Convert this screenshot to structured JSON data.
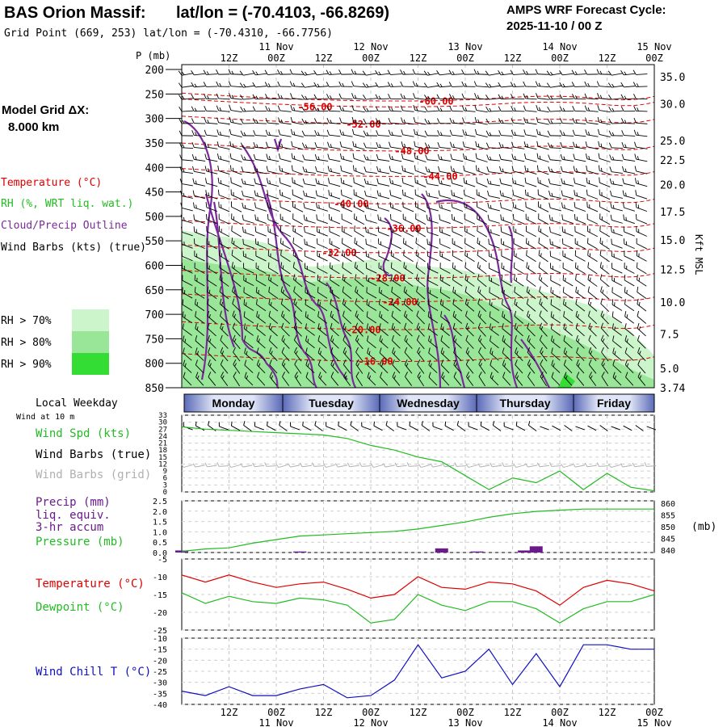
{
  "header": {
    "station_title": "BAS Orion Massif:",
    "latlon_title": "lat/lon = (-70.4103, -66.8269)",
    "grid_point": "Grid Point (669, 253) lat/lon = (-70.4310, -66.7756)",
    "cycle_label": "AMPS WRF Forecast Cycle:",
    "cycle_value": "2025-11-10 / 00  Z"
  },
  "left_panel": {
    "model_grid_label": "Model Grid ΔX:",
    "model_grid_value": "8.000 km",
    "legend": [
      {
        "text": "Temperature (°C)",
        "color": "#dd0000"
      },
      {
        "text": "RH (%, WRT liq. wat.)",
        "color": "#22bb22"
      },
      {
        "text": "Cloud/Precip Outline",
        "color": "#7a2a9a"
      },
      {
        "text": "Wind Barbs (kts) (true)",
        "color": "#000000"
      }
    ],
    "rh_scale": [
      {
        "text": "RH > 70%",
        "color": "#ccf5cc"
      },
      {
        "text": "RH > 80%",
        "color": "#99e699"
      },
      {
        "text": "RH > 90%",
        "color": "#33dd33"
      }
    ]
  },
  "time_axis": {
    "top_dates": [
      "11 Nov",
      "12 Nov",
      "13 Nov",
      "14 Nov",
      "15 Nov"
    ],
    "hour_labels": [
      "12Z",
      "00Z",
      "12Z",
      "00Z",
      "12Z",
      "00Z",
      "12Z",
      "00Z",
      "12Z",
      "00Z"
    ],
    "bottom_dates": [
      "11 Nov",
      "12 Nov",
      "13 Nov",
      "14 Nov",
      "15 Nov"
    ]
  },
  "weekday_bar": {
    "title": "Local Weekday",
    "days": [
      "Monday",
      "Tuesday",
      "Wednesday",
      "Thursday",
      "Friday"
    ]
  },
  "chart_data": [
    {
      "type": "area",
      "panel": "cross-section",
      "ylabel": "P (mb)",
      "pressure_ticks": [
        200,
        250,
        300,
        350,
        400,
        450,
        500,
        550,
        600,
        650,
        700,
        750,
        800,
        850
      ],
      "pressure_tick_labels": [
        "200",
        "250",
        "300",
        "350",
        "400",
        "450",
        "500",
        "550",
        "600",
        "650",
        "700",
        "750",
        "800",
        "850"
      ],
      "right_axis_label": "Kft MSL",
      "height_ticks_kft": [
        "35.0",
        "30.0",
        "25.0",
        "22.5",
        "20.0",
        "17.5",
        "15.0",
        "12.5",
        "10.0",
        "7.5",
        "5.0",
        "3.74"
      ],
      "height_tick_pressures": [
        215,
        270,
        345,
        385,
        435,
        490,
        548,
        608,
        675,
        740,
        810,
        850
      ],
      "temperature_contours": [
        {
          "label": "-60.00",
          "p": 268
        },
        {
          "label": "-56.00",
          "p": 280
        },
        {
          "label": "-52.00",
          "p": 315
        },
        {
          "label": "-48.00",
          "p": 370
        },
        {
          "label": "-44.00",
          "p": 422
        },
        {
          "label": "-40.00",
          "p": 478
        },
        {
          "label": "-36.00",
          "p": 528
        },
        {
          "label": "-32.00",
          "p": 578
        },
        {
          "label": "-28.00",
          "p": 630
        },
        {
          "label": "-24.00",
          "p": 678
        },
        {
          "label": "-20.00",
          "p": 735
        },
        {
          "label": "-16.00",
          "p": 800
        }
      ]
    },
    {
      "type": "line",
      "panel": "wind",
      "title": "Wind at 10 m",
      "series_labels": [
        "Wind Spd (kts)",
        "Wind Barbs (true)",
        "Wind Barbs (grid)"
      ],
      "yticks": [
        "33",
        "30",
        "27",
        "24",
        "21",
        "18",
        "15",
        "12",
        "9",
        "6",
        "3",
        "0"
      ],
      "ylim": [
        0,
        33
      ],
      "x_hours": [
        0,
        6,
        12,
        18,
        24,
        30,
        36,
        42,
        48,
        54,
        60,
        66,
        72,
        78,
        84,
        90,
        96,
        102,
        108,
        114,
        120
      ],
      "wind_speed": [
        28,
        27,
        26.5,
        26,
        25.5,
        25,
        24.5,
        23,
        20,
        18,
        15,
        13,
        7,
        1,
        6,
        4,
        9,
        1,
        8,
        2,
        0.5
      ]
    },
    {
      "type": "bar",
      "panel": "precip-pressure",
      "series_labels": [
        "Precip (mm)",
        "liq. equiv.",
        "3-hr accum",
        "Pressure (mb)"
      ],
      "left_ticks": [
        "2.5",
        "2.0",
        "1.5",
        "1.0",
        "0.5",
        "0.0"
      ],
      "right_ticks": [
        "860",
        "855",
        "850",
        "845",
        "840"
      ],
      "right_unit": "(mb)",
      "ylim_precip": [
        0,
        2.5
      ],
      "ylim_pressure": [
        839,
        861
      ],
      "x_hours": [
        0,
        6,
        12,
        18,
        24,
        30,
        36,
        42,
        48,
        54,
        60,
        66,
        72,
        78,
        84,
        90,
        96,
        102,
        108,
        114,
        120
      ],
      "pressure": [
        839.5,
        840.5,
        841.0,
        843.0,
        844.5,
        846.0,
        846.5,
        847.0,
        847.5,
        848.0,
        849.0,
        850.5,
        852.0,
        854.0,
        855.5,
        856.5,
        857.0,
        857.5,
        857.5,
        857.5,
        857.5
      ],
      "precip_hours": [
        0,
        30,
        66,
        75,
        87,
        90
      ],
      "precip": [
        0.1,
        0.05,
        0.2,
        0.05,
        0.1,
        0.3
      ]
    },
    {
      "type": "line",
      "panel": "temperature",
      "series_labels": [
        "Temperature (°C)",
        "Dewpoint (°C)"
      ],
      "yticks": [
        "-5",
        "-10",
        "-15",
        "-20",
        "-25"
      ],
      "ylim": [
        -25,
        -5
      ],
      "x_hours": [
        0,
        6,
        12,
        18,
        24,
        30,
        36,
        42,
        48,
        54,
        60,
        66,
        72,
        78,
        84,
        90,
        96,
        102,
        108,
        114,
        120
      ],
      "temperature": [
        -9.5,
        -11.5,
        -9.5,
        -11.5,
        -13,
        -12,
        -11.5,
        -13.5,
        -16,
        -15,
        -10,
        -13,
        -13.5,
        -11.5,
        -12,
        -14,
        -18,
        -13,
        -11,
        -12,
        -14
      ],
      "dewpoint": [
        -14.5,
        -17.5,
        -15.5,
        -17,
        -17.5,
        -16,
        -16.5,
        -18,
        -23,
        -22,
        -15,
        -18,
        -19.5,
        -17,
        -17,
        -19,
        -23,
        -19,
        -17,
        -17,
        -15
      ]
    },
    {
      "type": "line",
      "panel": "wind-chill",
      "series_labels": [
        "Wind Chill T (°C)"
      ],
      "yticks": [
        "-10",
        "-15",
        "-20",
        "-25",
        "-30",
        "-35",
        "-40"
      ],
      "ylim": [
        -40,
        -10
      ],
      "x_hours": [
        0,
        6,
        12,
        18,
        24,
        30,
        36,
        42,
        48,
        54,
        60,
        66,
        72,
        78,
        84,
        90,
        96,
        102,
        108,
        114,
        120
      ],
      "wind_chill": [
        -34,
        -36,
        -32,
        -36,
        -36,
        -33,
        -31,
        -37,
        -36,
        -29,
        -13,
        -28,
        -25,
        -15,
        -31,
        -17,
        -32,
        -13,
        -13,
        -15,
        -15
      ]
    }
  ],
  "colors": {
    "temperature": "#dd0000",
    "dewpoint": "#22bb22",
    "rh": "#22bb22",
    "cloud_outline": "#7a2a9a",
    "wind_chill": "#1010c0",
    "grid_barbs": "#b0b0b0",
    "precip_bar": "#6a1a8a",
    "pressure": "#22bb22"
  }
}
